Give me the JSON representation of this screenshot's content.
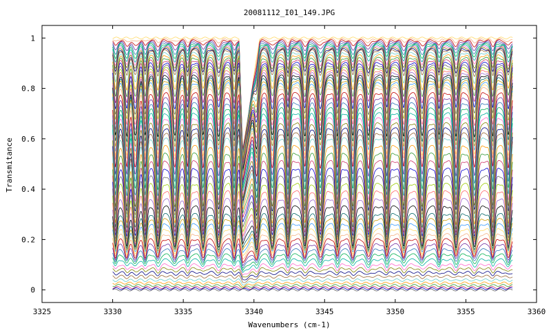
{
  "chart_data": {
    "type": "line",
    "title": "20081112_I01_149.JPG",
    "xlabel": "Wavenumbers (cm-1)",
    "ylabel": "Transmitance",
    "xlim": [
      3325,
      3360
    ],
    "ylim": [
      -0.05,
      1.05
    ],
    "x_ticks": [
      3325,
      3330,
      3335,
      3340,
      3345,
      3350,
      3355,
      3360
    ],
    "x_tick_labels": [
      "3325",
      "3330",
      "3335",
      "3340",
      "3345",
      "3350",
      "3355",
      "3360"
    ],
    "y_ticks": [
      0,
      0.2,
      0.4,
      0.6,
      0.8,
      1
    ],
    "y_tick_labels": [
      "0",
      "0.2",
      "0.4",
      "0.6",
      "0.8",
      "1"
    ],
    "grid": false,
    "legend": "none",
    "x_range": [
      3330,
      3358.3
    ],
    "series_levels": [
      1.0,
      0.995,
      0.99,
      0.985,
      0.98,
      0.975,
      0.97,
      0.965,
      0.96,
      0.955,
      0.95,
      0.94,
      0.93,
      0.92,
      0.91,
      0.9,
      0.89,
      0.88,
      0.87,
      0.86,
      0.85,
      0.84,
      0.83,
      0.82,
      0.81,
      0.8,
      0.78,
      0.76,
      0.74,
      0.72,
      0.7,
      0.68,
      0.66,
      0.64,
      0.62,
      0.6,
      0.57,
      0.54,
      0.51,
      0.48,
      0.45,
      0.42,
      0.39,
      0.36,
      0.33,
      0.3,
      0.28,
      0.26,
      0.24,
      0.22,
      0.2,
      0.18,
      0.16,
      0.14,
      0.12,
      0.1,
      0.085,
      0.07,
      0.055,
      0.04,
      0.028,
      0.018,
      0.01,
      0.005,
      0.0
    ],
    "absorption_lines": [
      3330.2,
      3331.0,
      3331.6,
      3332.3,
      3333.2,
      3334.4,
      3335.3,
      3336.4,
      3337.5,
      3338.6,
      3340.2,
      3341.3,
      3342.4,
      3343.6,
      3344.7,
      3345.9,
      3347.0,
      3348.1,
      3349.4,
      3350.6,
      3351.9,
      3353.1,
      3354.3,
      3355.6,
      3356.9,
      3358.0
    ],
    "absorption_depth": 0.55,
    "step_edge_x": 3339.2,
    "colors": [
      "#ffd966",
      "#f4b183",
      "#c00000",
      "#7030a0",
      "#2e75b6",
      "#00b050",
      "#00b0a0",
      "#ff66cc",
      "#808000",
      "#000080",
      "#996633",
      "#66cccc",
      "#ff9900",
      "#339933",
      "#cc3366",
      "#0000cc",
      "#666666",
      "#99cc00",
      "#ff6666",
      "#9966cc",
      "#000000",
      "#006666",
      "#cc9900",
      "#3399ff"
    ]
  }
}
